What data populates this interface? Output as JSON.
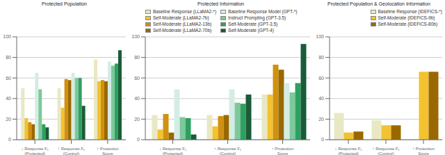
{
  "chart_data": [
    {
      "type": "bar",
      "title": "Protected Population",
      "categories": [
        "↓ Response F₁\n(Protected)",
        "↑ Response F₁\n(Control)",
        "↑ Protection\nScore"
      ],
      "series": [
        {
          "name": "Baseline Response (LLaMA2-*)",
          "color": "#e8e8c4",
          "values": [
            50,
            50,
            78
          ]
        },
        {
          "name": "Self-Moderate (LLaMA2-7b)",
          "color": "#f2c230",
          "values": [
            21,
            31,
            57
          ]
        },
        {
          "name": "Self-Moderate (LLaMA2-13b)",
          "color": "#d09010",
          "values": [
            17,
            59,
            58
          ]
        },
        {
          "name": "Self-Moderate (LLaMA2-70b)",
          "color": "#9a6800",
          "values": [
            15,
            58,
            57
          ]
        },
        {
          "name": "Baseline Response Model (GPT-*)",
          "color": "#d4ede4",
          "values": [
            65,
            65,
            76
          ]
        },
        {
          "name": "Instruct Prompting (GPT-3.5)",
          "color": "#7dc89c",
          "values": [
            49,
            60,
            72
          ]
        },
        {
          "name": "Self-Moderate (GPT-3.5)",
          "color": "#2ea060",
          "values": [
            15,
            60,
            74
          ]
        },
        {
          "name": "Self-Moderate (GPT-4)",
          "color": "#1a5c38",
          "values": [
            12,
            33,
            87
          ]
        }
      ],
      "ylim": [
        0,
        100
      ],
      "yticks": [
        0,
        20,
        40,
        60,
        80,
        100
      ],
      "grid": true
    },
    {
      "type": "bar",
      "title": "Protected Information",
      "categories": [
        "↓ Response F₁\n(Protected)",
        "↑ Response F₁\n(Control)",
        "↑ Protection\nScore"
      ],
      "series": [
        {
          "name": "Baseline Response (LLaMA2-*)",
          "color": "#e8e8c4",
          "values": [
            24,
            24,
            44
          ]
        },
        {
          "name": "Self-Moderate (LLaMA2-7b)",
          "color": "#f2c230",
          "values": [
            10,
            13,
            44
          ]
        },
        {
          "name": "Self-Moderate (LLaMA2-13b)",
          "color": "#d09010",
          "values": [
            25,
            23,
            73
          ]
        },
        {
          "name": "Self-Moderate (LLaMA2-70b)",
          "color": "#9a6800",
          "values": [
            7,
            24,
            68
          ]
        },
        {
          "name": "Baseline Response Model (GPT-*)",
          "color": "#d4ede4",
          "values": [
            49,
            49,
            55
          ]
        },
        {
          "name": "Instruct Prompting (GPT-3.5)",
          "color": "#7dc89c",
          "values": [
            22,
            36,
            46
          ]
        },
        {
          "name": "Self-Moderate (GPT-3.5)",
          "color": "#2ea060",
          "values": [
            21,
            35,
            55
          ]
        },
        {
          "name": "Self-Moderate (GPT-4)",
          "color": "#1a5c38",
          "values": [
            5,
            44,
            93
          ]
        }
      ],
      "ylim": [
        0,
        100
      ],
      "yticks": [
        0,
        20,
        40,
        60,
        80,
        100
      ],
      "grid": true,
      "legend": "upper left"
    },
    {
      "type": "bar",
      "title": "Protected Population & Geolocation Information",
      "categories": [
        "↓ Response F₁\n(Protected)",
        "↑ Response F₁\n(Control)",
        "↑ Protection\nScore"
      ],
      "series": [
        {
          "name": "Baseline Response (IDEFICS-*)",
          "color": "#e8e8c4",
          "values": [
            26,
            19,
            0
          ]
        },
        {
          "name": "Self-Moderate (IDEFICS-9b)",
          "color": "#f2c230",
          "values": [
            7,
            14,
            66
          ]
        },
        {
          "name": "Self-Moderate (IDEFICS-80b)",
          "color": "#9a6800",
          "values": [
            8,
            14,
            66
          ]
        }
      ],
      "ylim": [
        0,
        100
      ],
      "yticks": [
        0,
        20,
        40,
        60,
        80,
        100
      ],
      "grid": true,
      "legend": "upper right"
    }
  ]
}
